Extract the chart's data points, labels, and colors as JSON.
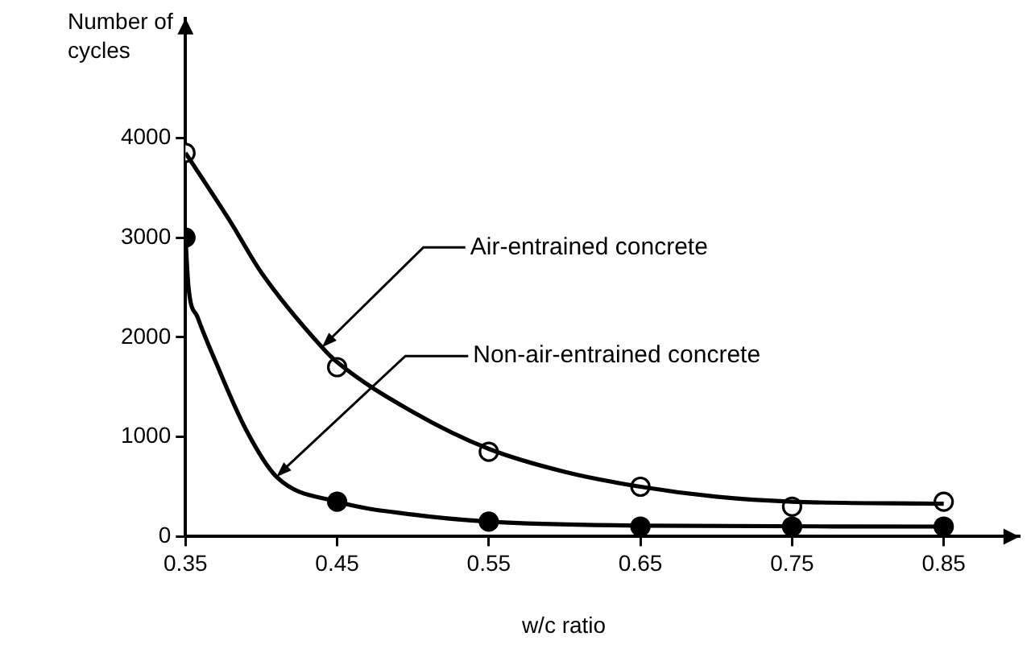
{
  "chart_data": {
    "type": "line",
    "xlabel": "w/c ratio",
    "ylabel": "Number of cycles",
    "series": [
      {
        "type": "line",
        "color": "#000000",
        "marker": "none",
        "x": [
          0.35,
          0.38,
          0.4,
          0.44,
          0.45,
          0.5,
          0.55,
          0.6,
          0.65,
          0.7,
          0.75,
          0.85
        ],
        "values": [
          3850,
          3150,
          2650,
          1900,
          1750,
          1250,
          880,
          650,
          500,
          400,
          350,
          330
        ]
      },
      {
        "type": "line",
        "color": "#000000",
        "marker": "none",
        "x": [
          0.35,
          0.352,
          0.358,
          0.37,
          0.39,
          0.41,
          0.45,
          0.5,
          0.55,
          0.65,
          0.85
        ],
        "values": [
          3000,
          2500,
          2200,
          1750,
          1070,
          600,
          350,
          220,
          150,
          110,
          100
        ]
      },
      {
        "type": "scatter",
        "color": "#ffffff",
        "x": [
          0.35,
          0.45,
          0.55,
          0.65,
          0.75,
          0.85
        ],
        "values": [
          3850,
          1700,
          850,
          500,
          300,
          350
        ]
      },
      {
        "type": "scatter",
        "color": "#000000",
        "x": [
          0.35,
          0.45,
          0.55,
          0.65,
          0.75,
          0.85
        ],
        "values": [
          3000,
          350,
          150,
          100,
          100,
          100
        ]
      }
    ],
    "xlim": [
      0.35,
      0.9
    ],
    "xticks": [
      0.35,
      0.45,
      0.55,
      0.65,
      0.75,
      0.85
    ],
    "ylim": [
      0,
      5200
    ],
    "yticks": [
      0,
      1000,
      2000,
      3000,
      4000
    ],
    "annotations": [
      {
        "text": "Air-entrained concrete",
        "x": 0.44,
        "y": 1900
      },
      {
        "text": "Non-air-entrained concrete",
        "x": 0.41,
        "y": 600
      }
    ],
    "grid": false,
    "legend": false,
    "marker": "circle",
    "line_style": "solid"
  }
}
